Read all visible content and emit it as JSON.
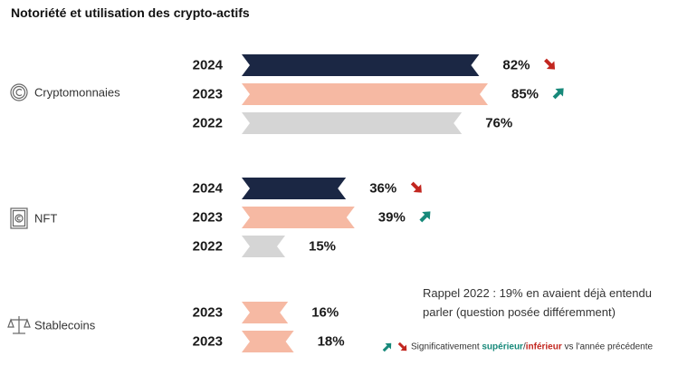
{
  "title": "Notoriété et utilisation des crypto-actifs",
  "colors": {
    "2024": "#1b2744",
    "2023": "#f6b9a3",
    "2022": "#d5d5d5",
    "arrow_up": "#17897a",
    "arrow_down": "#c2261f"
  },
  "chart_data": {
    "type": "bar",
    "orientation": "horizontal",
    "unit": "%",
    "xlim": [
      0,
      100
    ],
    "groups": [
      {
        "label": "Cryptomonnaies",
        "icon": "copyright-coin-icon",
        "bars": [
          {
            "year": "2024",
            "value": 82,
            "label": "82%",
            "trend": "down"
          },
          {
            "year": "2023",
            "value": 85,
            "label": "85%",
            "trend": "up"
          },
          {
            "year": "2022",
            "value": 76,
            "label": "76%",
            "trend": ""
          }
        ]
      },
      {
        "label": "NFT",
        "icon": "framed-coin-icon",
        "bars": [
          {
            "year": "2024",
            "value": 36,
            "label": "36%",
            "trend": "down"
          },
          {
            "year": "2023",
            "value": 39,
            "label": "39%",
            "trend": "up"
          },
          {
            "year": "2022",
            "value": 15,
            "label": "15%",
            "trend": ""
          }
        ]
      },
      {
        "label": "Stablecoins",
        "icon": "balance-scale-icon",
        "bars": [
          {
            "year": "2023",
            "value": 16,
            "label": "16%",
            "trend": ""
          },
          {
            "year": "2023",
            "value": 18,
            "label": "18%",
            "trend": ""
          }
        ]
      }
    ]
  },
  "note": {
    "line1": "Rappel 2022 : 19% en avaient déjà entendu",
    "line2": "parler (question posée différemment)"
  },
  "legend": {
    "prefix": "Significativement ",
    "superieur": "supérieur",
    "slash": "/",
    "inferieur": "inférieur",
    "suffix": " vs l'année précédente"
  }
}
